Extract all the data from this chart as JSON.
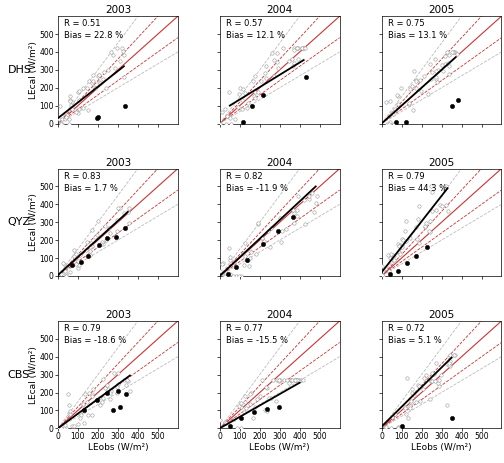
{
  "sites": [
    "DHS",
    "QYZ",
    "CBS"
  ],
  "years": [
    "2003",
    "2004",
    "2005"
  ],
  "stats": {
    "DHS": {
      "2003": {
        "R": 0.51,
        "Bias": 22.8
      },
      "2004": {
        "R": 0.57,
        "Bias": 12.1
      },
      "2005": {
        "R": 0.75,
        "Bias": 13.1
      }
    },
    "QYZ": {
      "2003": {
        "R": 0.83,
        "Bias": 1.7
      },
      "2004": {
        "R": 0.82,
        "Bias": -11.9
      },
      "2005": {
        "R": 0.79,
        "Bias": 44.3
      }
    },
    "CBS": {
      "2003": {
        "R": 0.79,
        "Bias": -18.6
      },
      "2004": {
        "R": 0.77,
        "Bias": -15.5
      },
      "2005": {
        "R": 0.72,
        "Bias": 5.1
      }
    }
  },
  "xlim": [
    0,
    600
  ],
  "ylim": [
    0,
    600
  ],
  "xticks": [
    0,
    100,
    200,
    300,
    400,
    500
  ],
  "yticks": [
    0,
    100,
    200,
    300,
    400,
    500
  ],
  "xlabel": "LEobs (W/m²)",
  "ylabel": "LEcal (W/m²)",
  "one_to_one_color": "#cc3333",
  "dashed_color": "#cc3333",
  "outer_dashed_color": "#bbbbbb",
  "reg_line_color": "#000000",
  "open_marker_facecolor": "white",
  "open_marker_edgecolor": "#999999",
  "filled_marker_color": "#000000",
  "title_fontsize": 7.5,
  "label_fontsize": 6.5,
  "tick_fontsize": 5.5,
  "stat_fontsize": 6.0,
  "marker_size_open": 6,
  "marker_size_filled": 10,
  "seeds": {
    "DHS_2003": 42,
    "DHS_2004": 43,
    "DHS_2005": 44,
    "QYZ_2003": 45,
    "QYZ_2004": 46,
    "QYZ_2005": 47,
    "CBS_2003": 48,
    "CBS_2004": 49,
    "CBS_2005": 50
  },
  "reg_lines": {
    "DHS": {
      "2003": {
        "x0": 0,
        "y0": 30,
        "x1": 330,
        "y1": 320
      },
      "2004": {
        "x0": 50,
        "y0": 100,
        "x1": 420,
        "y1": 355
      },
      "2005": {
        "x0": 5,
        "y0": 5,
        "x1": 370,
        "y1": 370
      }
    },
    "QYZ": {
      "2003": {
        "x0": 0,
        "y0": 5,
        "x1": 350,
        "y1": 358
      },
      "2004": {
        "x0": 0,
        "y0": 0,
        "x1": 480,
        "y1": 500
      },
      "2005": {
        "x0": 0,
        "y0": 20,
        "x1": 330,
        "y1": 490
      }
    },
    "CBS": {
      "2003": {
        "x0": 0,
        "y0": 0,
        "x1": 360,
        "y1": 295
      },
      "2004": {
        "x0": 0,
        "y0": 0,
        "x1": 400,
        "y1": 255
      },
      "2005": {
        "x0": 0,
        "y0": 10,
        "x1": 350,
        "y1": 395
      }
    }
  },
  "filled_pts": {
    "DHS": {
      "2003": {
        "x": [
          200,
          195,
          335
        ],
        "y": [
          35,
          30,
          100
        ]
      },
      "2004": {
        "x": [
          115,
          160,
          215,
          430
        ],
        "y": [
          10,
          100,
          160,
          260
        ]
      },
      "2005": {
        "x": [
          70,
          120,
          350,
          380
        ],
        "y": [
          10,
          10,
          100,
          130
        ]
      }
    },
    "QYZ": {
      "2003": {
        "x": [
          70,
          115,
          150,
          205,
          245,
          290,
          335
        ],
        "y": [
          60,
          80,
          110,
          175,
          210,
          220,
          270
        ]
      },
      "2004": {
        "x": [
          40,
          80,
          135,
          215,
          290,
          365
        ],
        "y": [
          10,
          50,
          90,
          180,
          250,
          330
        ]
      },
      "2005": {
        "x": [
          40,
          80,
          125,
          170,
          225
        ],
        "y": [
          10,
          30,
          70,
          110,
          160
        ]
      }
    },
    "CBS": {
      "2003": {
        "x": [
          130,
          195,
          245,
          300,
          340,
          275,
          310
        ],
        "y": [
          100,
          160,
          195,
          210,
          190,
          100,
          120
        ]
      },
      "2004": {
        "x": [
          50,
          105,
          170,
          235,
          295
        ],
        "y": [
          10,
          60,
          90,
          110,
          120
        ]
      },
      "2005": {
        "x": [
          100,
          350
        ],
        "y": [
          10,
          60
        ]
      }
    }
  }
}
